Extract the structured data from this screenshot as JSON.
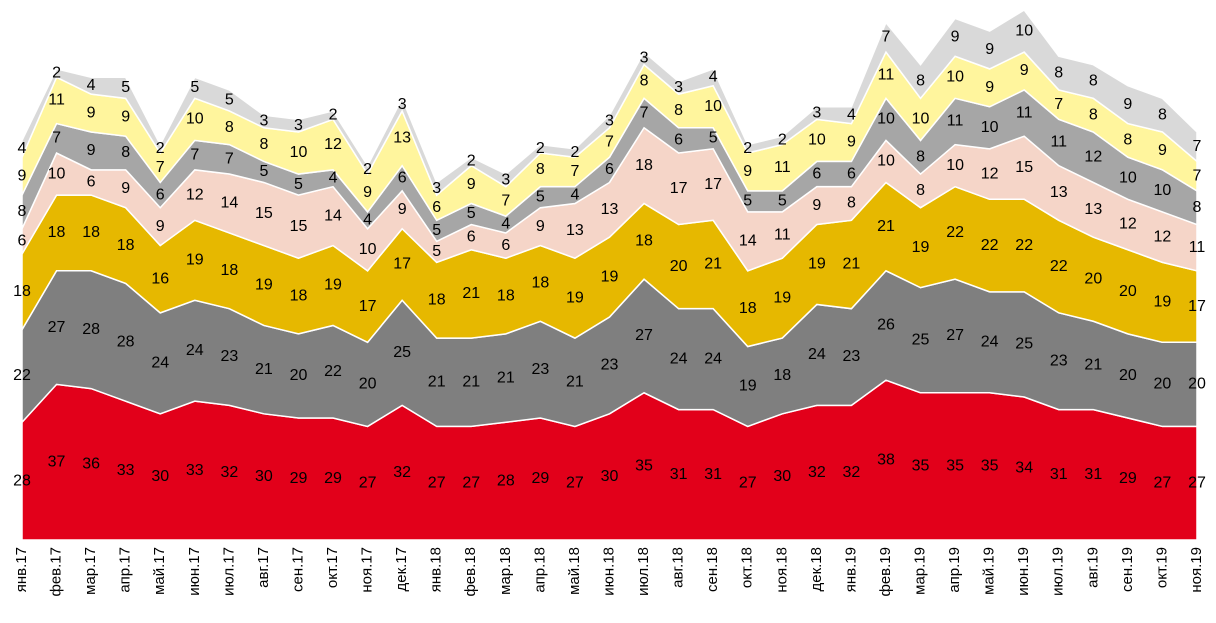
{
  "chart_data": {
    "type": "stacked_area",
    "categories": [
      "янв.17",
      "фев.17",
      "мар.17",
      "апр.17",
      "май.17",
      "июн.17",
      "июл.17",
      "авг.17",
      "сен.17",
      "окт.17",
      "ноя.17",
      "дек.17",
      "янв.18",
      "фев.18",
      "мар.18",
      "апр.18",
      "май.18",
      "июн.18",
      "июл.18",
      "авг.18",
      "сен.18",
      "окт.18",
      "ноя.18",
      "дек.18",
      "янв.19",
      "фев.19",
      "мар.19",
      "апр.19",
      "май.19",
      "июн.19",
      "июл.19",
      "авг.19",
      "сен.19",
      "окт.19",
      "ноя.19"
    ],
    "series": [
      {
        "color": "#e2001a",
        "values": [
          28,
          37,
          36,
          33,
          30,
          33,
          32,
          30,
          29,
          29,
          27,
          32,
          27,
          27,
          28,
          29,
          27,
          30,
          35,
          31,
          31,
          27,
          30,
          32,
          32,
          38,
          35,
          35,
          35,
          34,
          31,
          31,
          29,
          27,
          27
        ]
      },
      {
        "color": "#7f7f7f",
        "values": [
          22,
          27,
          28,
          28,
          24,
          24,
          23,
          21,
          20,
          22,
          20,
          25,
          21,
          21,
          21,
          23,
          21,
          23,
          27,
          24,
          24,
          19,
          18,
          24,
          23,
          26,
          25,
          27,
          24,
          25,
          23,
          21,
          20,
          20,
          20
        ]
      },
      {
        "color": "#e6b800",
        "values": [
          18,
          18,
          18,
          18,
          16,
          19,
          18,
          19,
          18,
          19,
          17,
          17,
          18,
          21,
          18,
          18,
          19,
          19,
          18,
          20,
          21,
          18,
          19,
          19,
          21,
          21,
          19,
          22,
          22,
          22,
          22,
          20,
          20,
          19,
          17
        ]
      },
      {
        "color": "#f5d5c8",
        "values": [
          6,
          10,
          6,
          9,
          9,
          12,
          14,
          15,
          15,
          14,
          10,
          9,
          5,
          6,
          6,
          9,
          13,
          13,
          18,
          17,
          17,
          14,
          11,
          9,
          8,
          10,
          8,
          10,
          12,
          15,
          13,
          13,
          12,
          12,
          11
        ]
      },
      {
        "color": "#a6a6a6",
        "values": [
          8,
          7,
          9,
          8,
          6,
          7,
          7,
          5,
          5,
          4,
          4,
          6,
          5,
          5,
          4,
          5,
          4,
          6,
          7,
          6,
          5,
          5,
          5,
          6,
          6,
          10,
          8,
          11,
          10,
          11,
          11,
          12,
          10,
          10,
          8
        ]
      },
      {
        "color": "#fff59d",
        "values": [
          9,
          11,
          9,
          9,
          7,
          10,
          8,
          8,
          10,
          12,
          9,
          13,
          6,
          9,
          7,
          8,
          7,
          7,
          8,
          8,
          10,
          9,
          11,
          10,
          9,
          11,
          10,
          10,
          9,
          9,
          7,
          8,
          8,
          9,
          7
        ]
      },
      {
        "color": "#d9d9d9",
        "values": [
          4,
          2,
          4,
          5,
          2,
          5,
          5,
          3,
          3,
          2,
          2,
          3,
          3,
          2,
          3,
          2,
          2,
          3,
          3,
          3,
          4,
          2,
          2,
          3,
          4,
          7,
          8,
          9,
          9,
          10,
          8,
          8,
          9,
          8,
          7
        ]
      }
    ]
  }
}
